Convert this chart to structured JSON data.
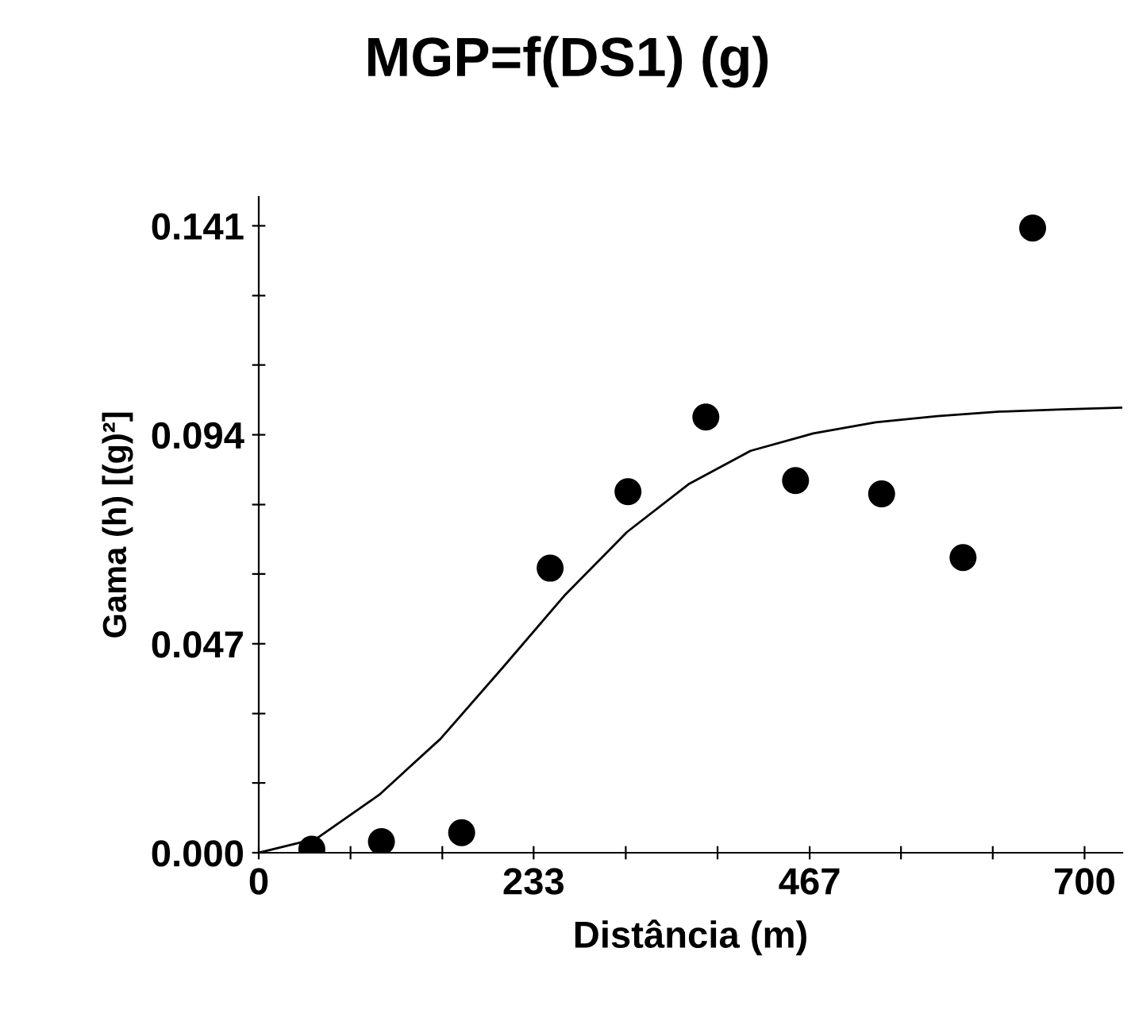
{
  "chart_data": {
    "type": "scatter",
    "title": "MGP=f(DS1) (g)",
    "xlabel": "Distância (m)",
    "ylabel": "Gama (h) [(g)²]",
    "xlim": [
      0,
      732
    ],
    "ylim": [
      0,
      0.1475
    ],
    "xticks": [
      0,
      {
        "value": 77.8,
        "label": null
      },
      {
        "value": 155.6,
        "label": null
      },
      233,
      {
        "value": 311.1,
        "label": null
      },
      {
        "value": 388.9,
        "label": null
      },
      467,
      {
        "value": 544.4,
        "label": null
      },
      {
        "value": 622.2,
        "label": null
      },
      700
    ],
    "yticks": [
      {
        "value": 0,
        "label": "0.000"
      },
      {
        "value": 0.0157,
        "label": null
      },
      {
        "value": 0.0313,
        "label": null
      },
      0.047,
      {
        "value": 0.0627,
        "label": null
      },
      {
        "value": 0.0783,
        "label": null
      },
      0.094,
      {
        "value": 0.1097,
        "label": null
      },
      {
        "value": 0.1253,
        "label": null
      },
      0.141
    ],
    "grid": false,
    "series": [
      {
        "marker": "circle",
        "color": "#000000",
        "x": [
          45,
          104,
          172,
          247,
          313,
          379,
          455,
          528,
          597,
          656
        ],
        "values": [
          0.0008,
          0.0025,
          0.0045,
          0.064,
          0.0812,
          0.098,
          0.0837,
          0.0807,
          0.0664,
          0.1405
        ]
      },
      {
        "type": "line",
        "color": "#000000",
        "x": [
          0,
          49,
          102,
          154,
          207,
          259,
          312,
          365,
          417,
          470,
          523,
          575,
          628,
          681,
          732
        ],
        "values": [
          0,
          0.0032,
          0.013,
          0.0256,
          0.0417,
          0.0578,
          0.0721,
          0.083,
          0.0904,
          0.0943,
          0.0968,
          0.0982,
          0.0992,
          0.0997,
          0.1001
        ]
      }
    ]
  }
}
